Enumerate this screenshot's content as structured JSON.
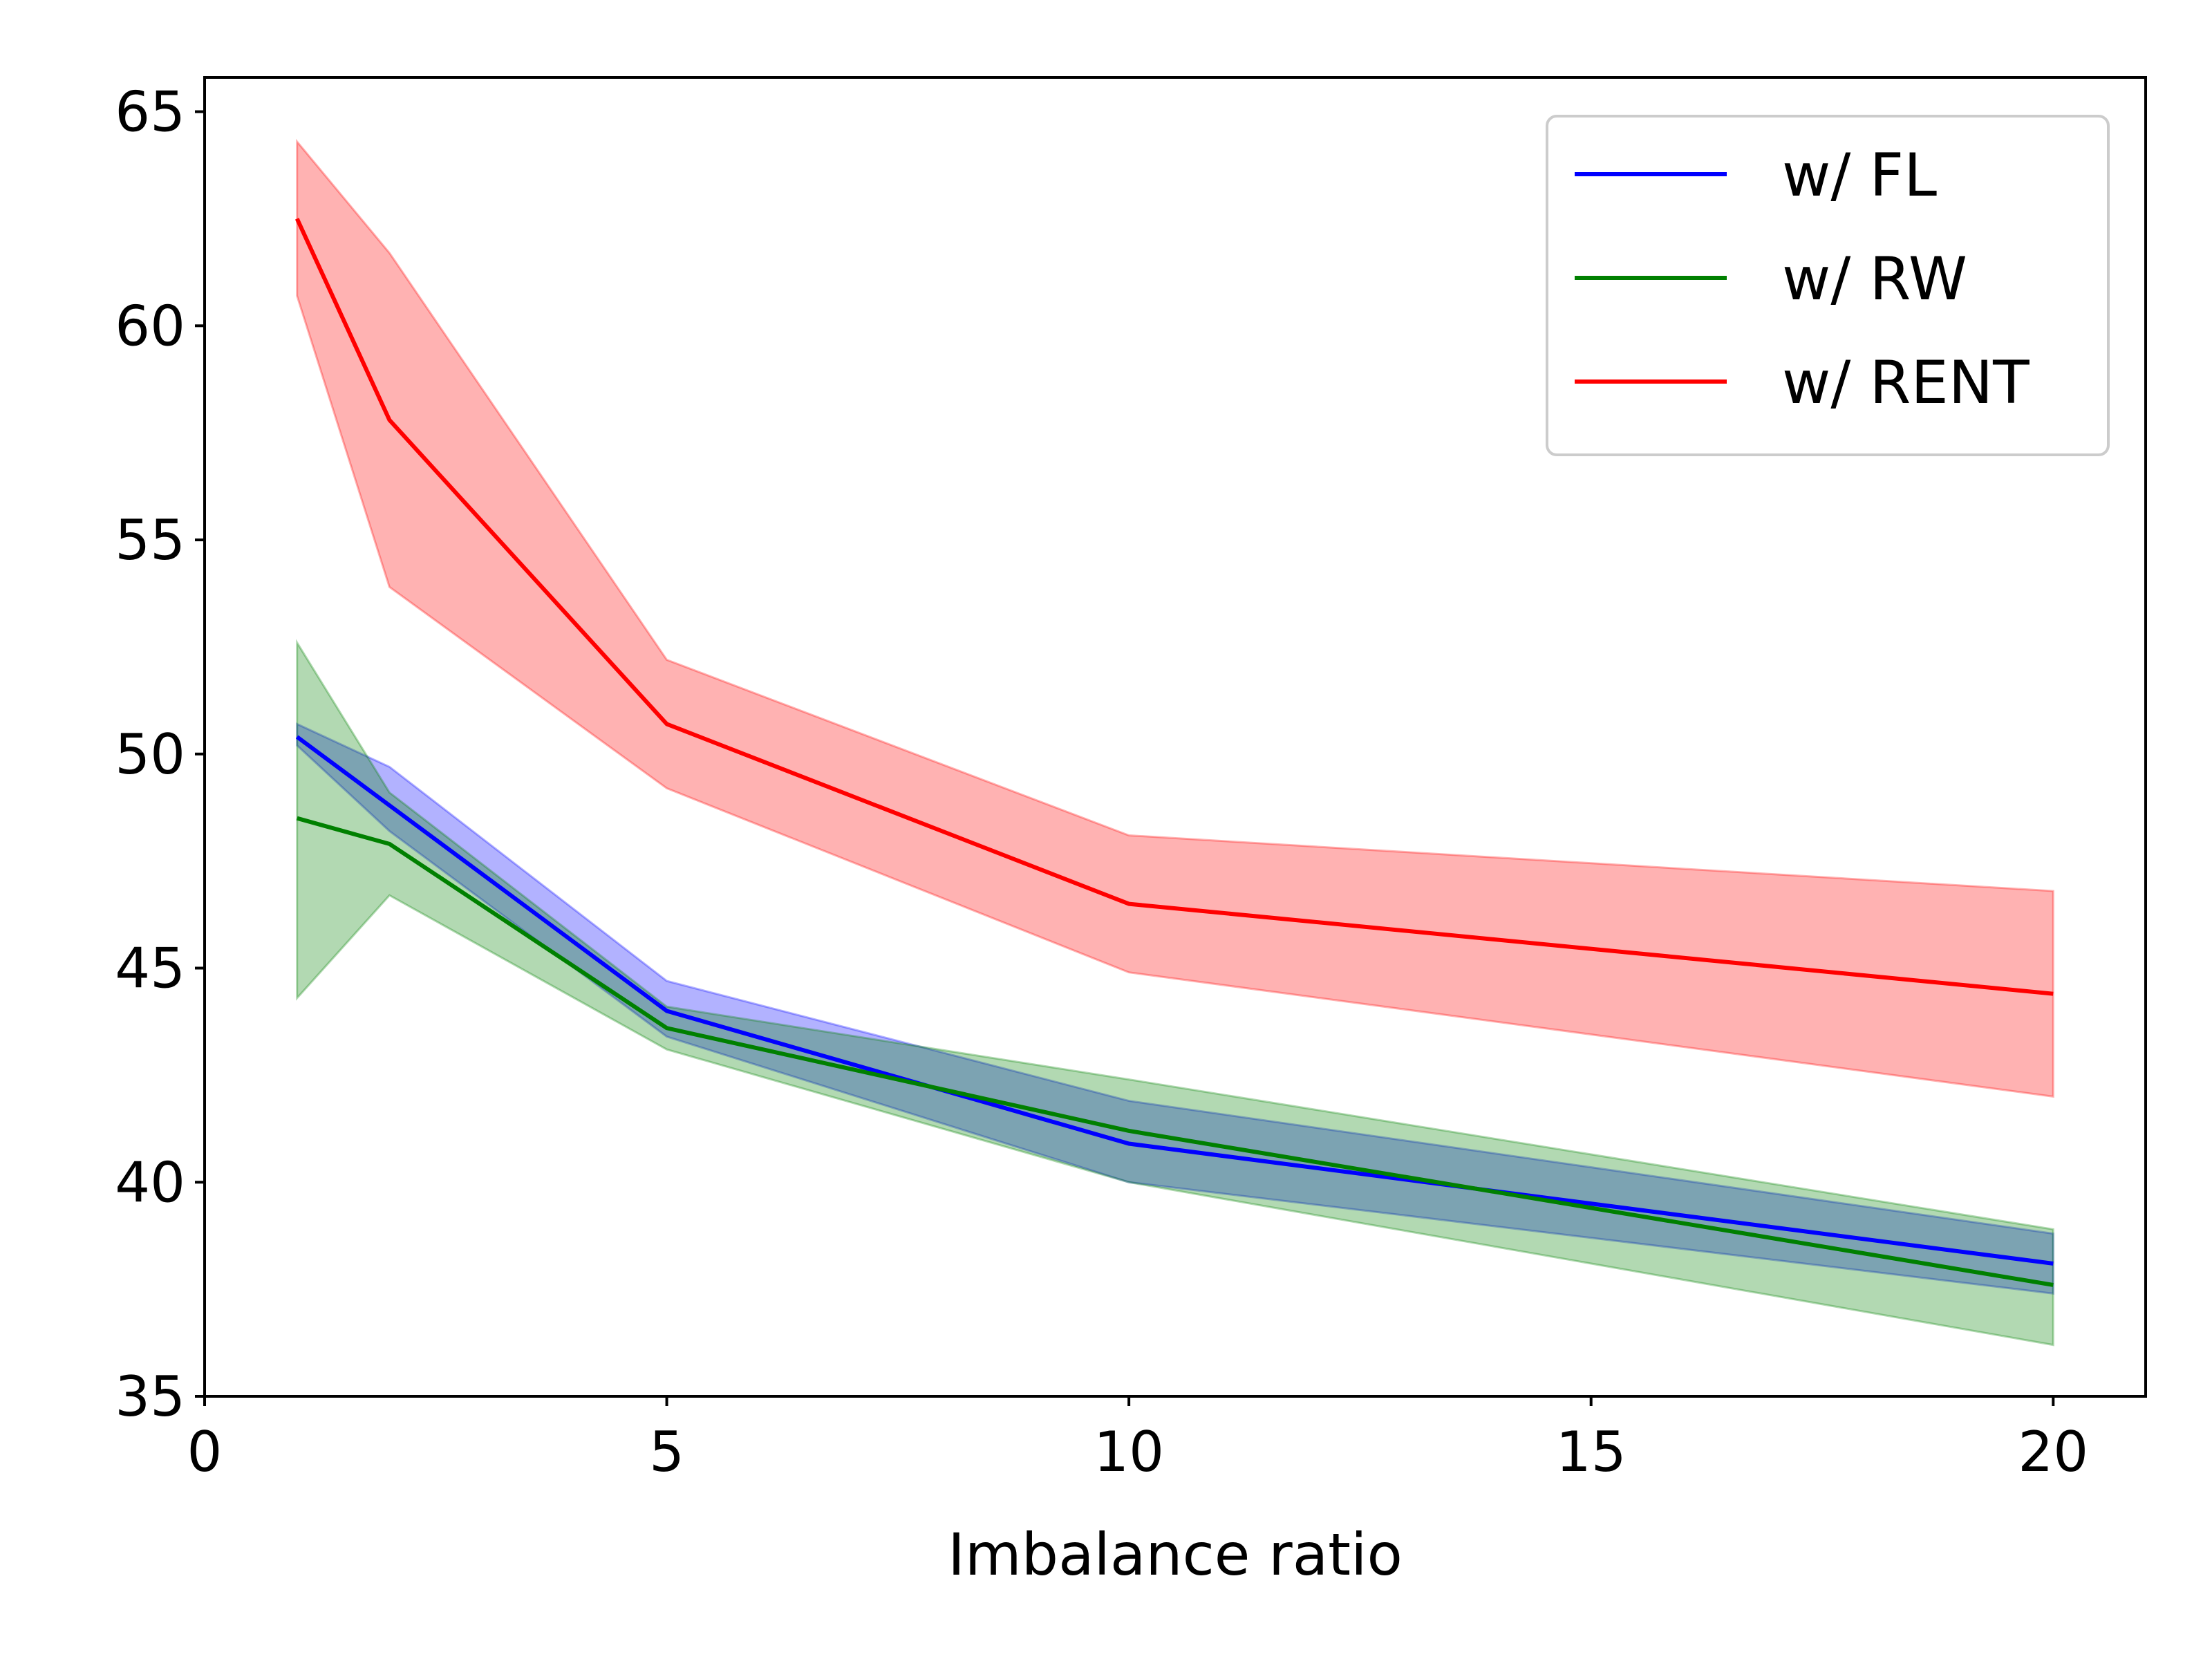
{
  "chart_data": {
    "type": "line",
    "title": "",
    "xlabel": "Imbalance ratio",
    "ylabel": "",
    "xlim": [
      0,
      21
    ],
    "ylim": [
      35,
      65.8
    ],
    "xticks": [
      0,
      5,
      10,
      15,
      20
    ],
    "yticks": [
      35,
      40,
      45,
      50,
      55,
      60,
      65
    ],
    "x": [
      1,
      2,
      5,
      10,
      20
    ],
    "legend_position": "top-right",
    "series": [
      {
        "name": "w/ FL",
        "color": "#0000ff",
        "values": [
          50.4,
          48.8,
          44.0,
          40.9,
          38.1
        ],
        "lower": [
          50.2,
          48.2,
          43.4,
          40.0,
          37.4
        ],
        "upper": [
          50.7,
          49.7,
          44.7,
          41.9,
          38.8
        ]
      },
      {
        "name": "w/ RW",
        "color": "#008000",
        "values": [
          48.5,
          47.9,
          43.6,
          41.2,
          37.6
        ],
        "lower": [
          44.3,
          46.7,
          43.1,
          40.0,
          36.2
        ],
        "upper": [
          52.6,
          49.1,
          44.1,
          42.4,
          38.9
        ]
      },
      {
        "name": "w/ RENT",
        "color": "#ff0000",
        "values": [
          62.5,
          57.8,
          50.7,
          46.5,
          44.4
        ],
        "lower": [
          60.7,
          53.9,
          49.2,
          44.9,
          42.0
        ],
        "upper": [
          64.3,
          61.7,
          52.2,
          48.1,
          46.8
        ]
      }
    ]
  }
}
